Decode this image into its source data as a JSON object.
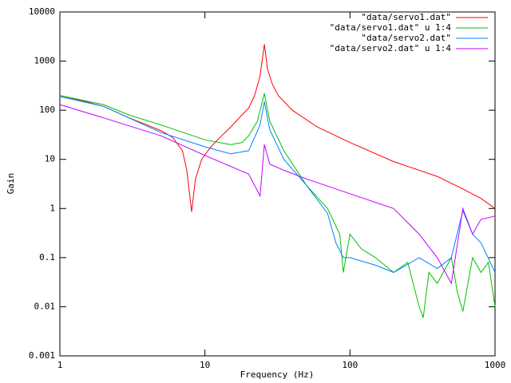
{
  "chart_data": {
    "type": "line",
    "xlabel": "Frequency (Hz)",
    "ylabel": "Gain",
    "xscale": "log",
    "yscale": "log",
    "legend": "top-right",
    "xlim": [
      1,
      1000
    ],
    "xticks": [
      1,
      10,
      100,
      1000
    ],
    "ylim": [
      0.001,
      10000
    ],
    "yticks": [
      0.001,
      0.01,
      0.1,
      1,
      10,
      100,
      1000,
      10000
    ],
    "series": [
      {
        "name": "\"data/servo1.dat\"",
        "color": "#ff0000",
        "x": [
          1,
          1.5,
          2,
          3,
          4,
          5,
          6,
          7,
          7.5,
          8.1,
          8.6,
          9.5,
          11,
          13,
          15,
          18,
          20,
          22,
          24,
          25.7,
          27,
          29,
          32,
          40,
          60,
          100,
          200,
          400,
          600,
          800,
          1000
        ],
        "values": [
          200,
          150,
          120,
          70,
          50,
          38,
          28,
          15,
          6,
          0.85,
          4,
          10,
          18,
          30,
          45,
          80,
          110,
          200,
          500,
          2200,
          700,
          350,
          200,
          100,
          45,
          22,
          9,
          4.5,
          2.5,
          1.6,
          1
        ]
      },
      {
        "name": "\"data/servo1.dat\" u 1:4",
        "color": "#00c000",
        "x": [
          1,
          2,
          3,
          5,
          10,
          15,
          18,
          20,
          23,
          25.7,
          28,
          35,
          50,
          70,
          85,
          90,
          100,
          120,
          150,
          200,
          250,
          300,
          320,
          350,
          400,
          500,
          550,
          600,
          700,
          800,
          900,
          1000
        ],
        "values": [
          200,
          130,
          80,
          50,
          25,
          20,
          22,
          30,
          60,
          220,
          60,
          15,
          3,
          1,
          0.3,
          0.05,
          0.3,
          0.15,
          0.1,
          0.05,
          0.08,
          0.01,
          0.006,
          0.05,
          0.03,
          0.1,
          0.02,
          0.008,
          0.1,
          0.05,
          0.08,
          0.01
        ]
      },
      {
        "name": "\"data/servo2.dat\"",
        "color": "#0080ff",
        "x": [
          1,
          2,
          5,
          10,
          15,
          20,
          24,
          25.7,
          28,
          35,
          50,
          70,
          80,
          90,
          100,
          150,
          200,
          300,
          400,
          500,
          600,
          700,
          800,
          1000
        ],
        "values": [
          190,
          120,
          35,
          18,
          13,
          15,
          50,
          150,
          40,
          10,
          3,
          0.8,
          0.2,
          0.1,
          0.1,
          0.07,
          0.05,
          0.1,
          0.06,
          0.1,
          0.9,
          0.3,
          0.2,
          0.05
        ]
      },
      {
        "name": "\"data/servo2.dat\" u 1:4",
        "color": "#c000ff",
        "x": [
          1,
          2,
          5,
          10,
          20,
          24,
          25.7,
          28,
          35,
          50,
          100,
          200,
          300,
          400,
          500,
          600,
          700,
          800,
          1000
        ],
        "values": [
          130,
          70,
          30,
          12,
          5,
          1.8,
          20,
          8,
          6,
          4,
          2,
          1,
          0.3,
          0.1,
          0.03,
          1,
          0.3,
          0.6,
          0.7
        ]
      }
    ]
  }
}
